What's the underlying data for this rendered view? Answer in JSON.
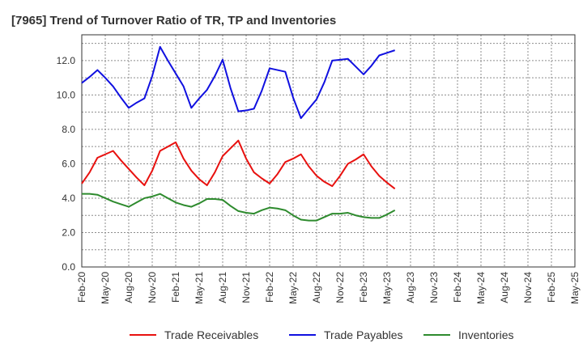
{
  "chart_data": {
    "type": "line",
    "title": "[7965]  Trend of Turnover Ratio of TR, TP and Inventories",
    "xlabel": "",
    "ylabel": "",
    "ylim": [
      0,
      13.5
    ],
    "yticks": [
      "0.0",
      "2.0",
      "4.0",
      "6.0",
      "8.0",
      "10.0",
      "12.0"
    ],
    "ytick_values": [
      0,
      2,
      4,
      6,
      8,
      10,
      12
    ],
    "x_tick_labels": [
      "Feb-20",
      "May-20",
      "Aug-20",
      "Nov-20",
      "Feb-21",
      "May-21",
      "Aug-21",
      "Nov-21",
      "Feb-22",
      "May-22",
      "Aug-22",
      "Nov-22",
      "Feb-23",
      "May-23",
      "Aug-23",
      "Nov-23",
      "Feb-24",
      "May-24",
      "Aug-24",
      "Nov-24",
      "Feb-25",
      "May-25"
    ],
    "grid": true,
    "legend_position": "bottom",
    "series": [
      {
        "name": "Trade Receivables",
        "color": "#e8110f",
        "values": [
          4.85,
          5.5,
          6.35,
          6.55,
          6.75,
          6.2,
          5.7,
          5.2,
          4.75,
          5.6,
          6.75,
          7.0,
          7.25,
          6.3,
          5.6,
          5.1,
          4.75,
          5.5,
          6.45,
          6.9,
          7.35,
          6.3,
          5.5,
          5.15,
          4.85,
          5.4,
          6.1,
          6.3,
          6.55,
          5.85,
          5.3,
          4.95,
          4.7,
          5.3,
          6.0,
          6.25,
          6.55,
          5.85,
          5.3,
          4.9,
          4.55
        ]
      },
      {
        "name": "Trade Payables",
        "color": "#1010e0",
        "values": [
          10.7,
          11.05,
          11.45,
          11.0,
          10.5,
          9.85,
          9.25,
          9.55,
          9.8,
          11.1,
          12.8,
          12.0,
          11.25,
          10.5,
          9.25,
          9.8,
          10.3,
          11.1,
          12.05,
          10.4,
          9.05,
          9.1,
          9.2,
          10.25,
          11.55,
          11.45,
          11.35,
          9.85,
          8.65,
          9.2,
          9.75,
          10.75,
          12.0,
          12.05,
          12.1,
          11.65,
          11.2,
          11.7,
          12.3,
          12.45,
          12.6
        ]
      },
      {
        "name": "Inventories",
        "color": "#2e8b2e",
        "values": [
          4.25,
          4.25,
          4.2,
          4.0,
          3.8,
          3.65,
          3.5,
          3.75,
          4.0,
          4.1,
          4.25,
          4.0,
          3.75,
          3.6,
          3.5,
          3.7,
          3.95,
          3.95,
          3.9,
          3.55,
          3.25,
          3.15,
          3.1,
          3.3,
          3.45,
          3.4,
          3.3,
          3.0,
          2.75,
          2.7,
          2.7,
          2.9,
          3.1,
          3.1,
          3.15,
          3.0,
          2.9,
          2.85,
          2.85,
          3.05,
          3.3
        ]
      }
    ]
  }
}
